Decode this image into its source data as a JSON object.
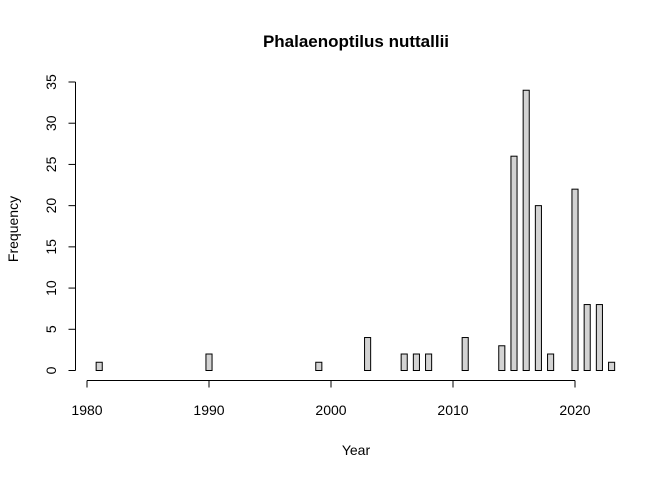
{
  "chart_data": {
    "type": "bar",
    "title": "Phalaenoptilus nuttallii",
    "xlabel": "Year",
    "ylabel": "Frequency",
    "xlim": [
      1980,
      2023
    ],
    "ylim": [
      0,
      35
    ],
    "xticks": [
      1980,
      1990,
      2000,
      2010,
      2020
    ],
    "yticks": [
      0,
      5,
      10,
      15,
      20,
      25,
      30,
      35
    ],
    "grid": false,
    "x": [
      1981,
      1982,
      1983,
      1984,
      1985,
      1986,
      1987,
      1988,
      1989,
      1990,
      1991,
      1992,
      1993,
      1994,
      1995,
      1996,
      1997,
      1998,
      1999,
      2000,
      2001,
      2002,
      2003,
      2004,
      2005,
      2006,
      2007,
      2008,
      2009,
      2010,
      2011,
      2012,
      2013,
      2014,
      2015,
      2016,
      2017,
      2018,
      2019,
      2020,
      2021,
      2022,
      2023
    ],
    "values": [
      1,
      0,
      0,
      0,
      0,
      0,
      0,
      0,
      0,
      2,
      0,
      0,
      0,
      0,
      0,
      0,
      0,
      0,
      1,
      0,
      0,
      0,
      4,
      0,
      0,
      2,
      2,
      2,
      0,
      0,
      4,
      0,
      0,
      3,
      26,
      34,
      20,
      2,
      0,
      22,
      8,
      8,
      1
    ]
  }
}
